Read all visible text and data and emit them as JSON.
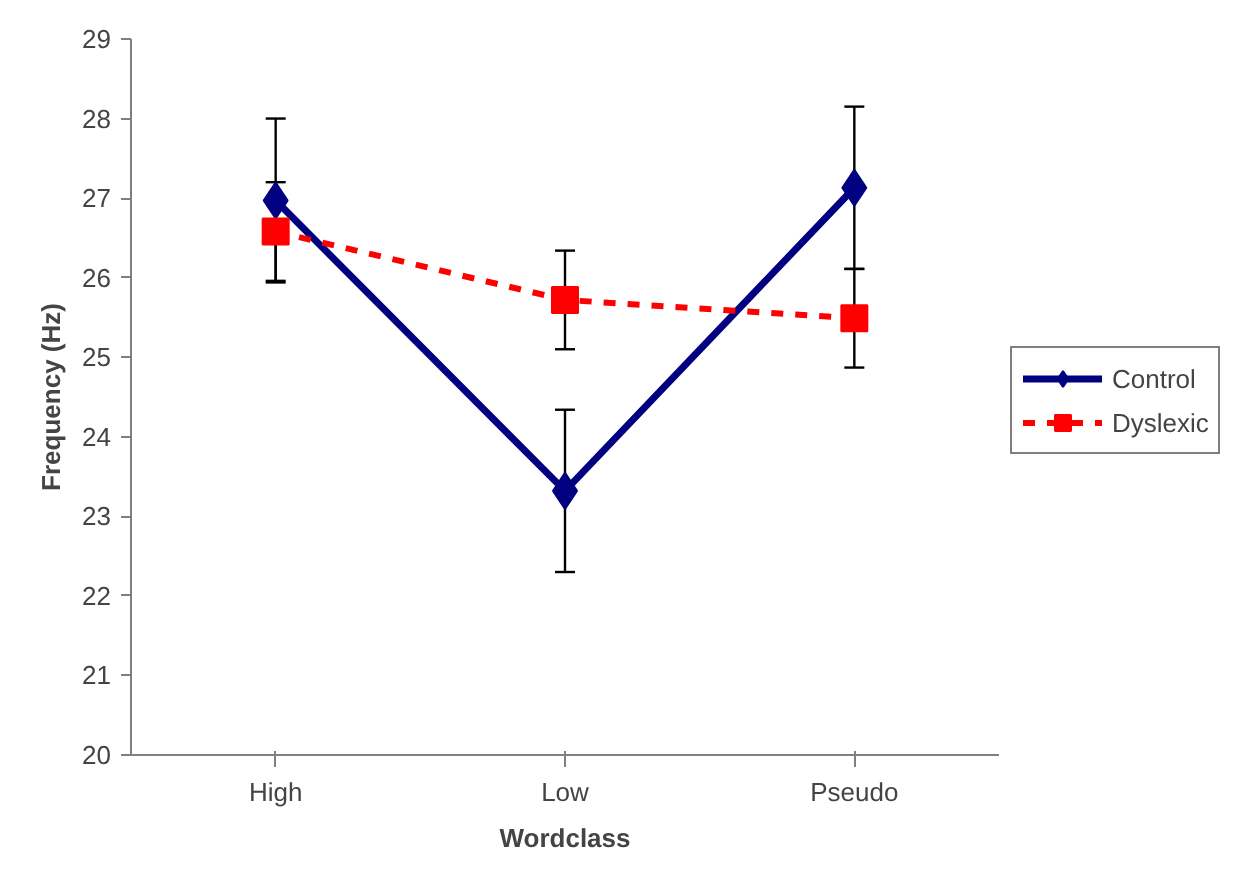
{
  "chart_data": {
    "type": "line",
    "xlabel": "Wordclass",
    "ylabel": "Frequency (Hz)",
    "categories": [
      "High",
      "Low",
      "Pseudo"
    ],
    "series": [
      {
        "name": "Control",
        "color": "#000080",
        "marker": "diamond",
        "line_style": "solid",
        "values": [
          26.97,
          23.32,
          27.13
        ],
        "errors": [
          1.03,
          1.02,
          1.02
        ]
      },
      {
        "name": "Dyslexic",
        "color": "#ff0000",
        "marker": "square",
        "line_style": "dashed",
        "values": [
          26.58,
          25.72,
          25.49
        ],
        "errors": [
          0.62,
          0.62,
          0.62
        ]
      }
    ],
    "ylim": [
      20,
      29
    ],
    "yticks": [
      20,
      21,
      22,
      23,
      24,
      25,
      26,
      27,
      28,
      29
    ],
    "grid": false,
    "legend": "right"
  }
}
